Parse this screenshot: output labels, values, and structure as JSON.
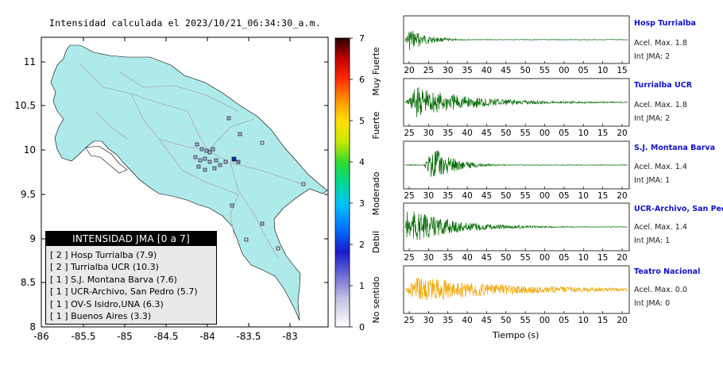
{
  "title": "Intensidad calculada el 2023/10/21_06:34:30_a.m.",
  "map": {
    "lat_ticks": [
      "11",
      "10.5",
      "10",
      "9.5",
      "9",
      "8.5",
      "8"
    ],
    "lon_ticks": [
      "-86",
      "-85.5",
      "-85",
      "-84.5",
      "-84",
      "-83.5",
      "-83"
    ],
    "land_color": "#aeeaea",
    "sea_color": "#ffffff"
  },
  "colorbar": {
    "ticks": [
      "7",
      "6",
      "5",
      "4",
      "3",
      "2",
      "1",
      "0"
    ],
    "labels": [
      "Muy Fuerte",
      "Fuerte",
      "Moderado",
      "Debil",
      "No sentido"
    ]
  },
  "legend": {
    "heading": "INTENSIDAD JMA [0 a 7]",
    "items": [
      "[ 2 ]  Hosp Turrialba (7.9)",
      "[ 2 ]  Turrialba UCR (10.3)",
      "[ 1 ]  S.J. Montana Barva (7.6)",
      "[ 1 ]  UCR-Archivo, San Pedro (5.7)",
      "[ 1 ]  OV-S Isidro,UNA (6.3)",
      "[ 1 ]  Buenos Aires (3.3)"
    ]
  },
  "waveforms": [
    {
      "name": "Hosp Turrialba",
      "accel": "Acel. Max. 1.8",
      "jma": "Int JMA: 2",
      "color": "#0a6e0a",
      "ticks": [
        "20",
        "25",
        "30",
        "35",
        "40",
        "45",
        "50",
        "55",
        "00",
        "05",
        "10",
        "15"
      ]
    },
    {
      "name": "Turrialba UCR",
      "accel": "Acel. Max. 1.8",
      "jma": "Int JMA: 2",
      "color": "#0a6e0a",
      "ticks": [
        "25",
        "30",
        "35",
        "40",
        "45",
        "50",
        "55",
        "00",
        "05",
        "10",
        "15",
        "20"
      ]
    },
    {
      "name": "S.J. Montana Barva",
      "accel": "Acel. Max. 1.4",
      "jma": "Int JMA: 1",
      "color": "#0a6e0a",
      "ticks": [
        "25",
        "30",
        "35",
        "40",
        "45",
        "50",
        "55",
        "00",
        "05",
        "10",
        "15",
        "20"
      ]
    },
    {
      "name": "UCR-Archivo, San Pedro",
      "accel": "Acel. Max. 1.4",
      "jma": "Int JMA: 1",
      "color": "#0a6e0a",
      "ticks": [
        "25",
        "30",
        "35",
        "40",
        "45",
        "50",
        "55",
        "00",
        "05",
        "10",
        "15",
        "20"
      ]
    },
    {
      "name": "Teatro Nacional",
      "accel": "Acel. Max. 0.0",
      "jma": "Int JMA: 0",
      "color": "#f2a500",
      "ticks": [
        "25",
        "30",
        "35",
        "40",
        "45",
        "50",
        "55",
        "00",
        "05",
        "10",
        "15",
        "20"
      ]
    }
  ],
  "x_axis_label": "Tiempo (s)"
}
